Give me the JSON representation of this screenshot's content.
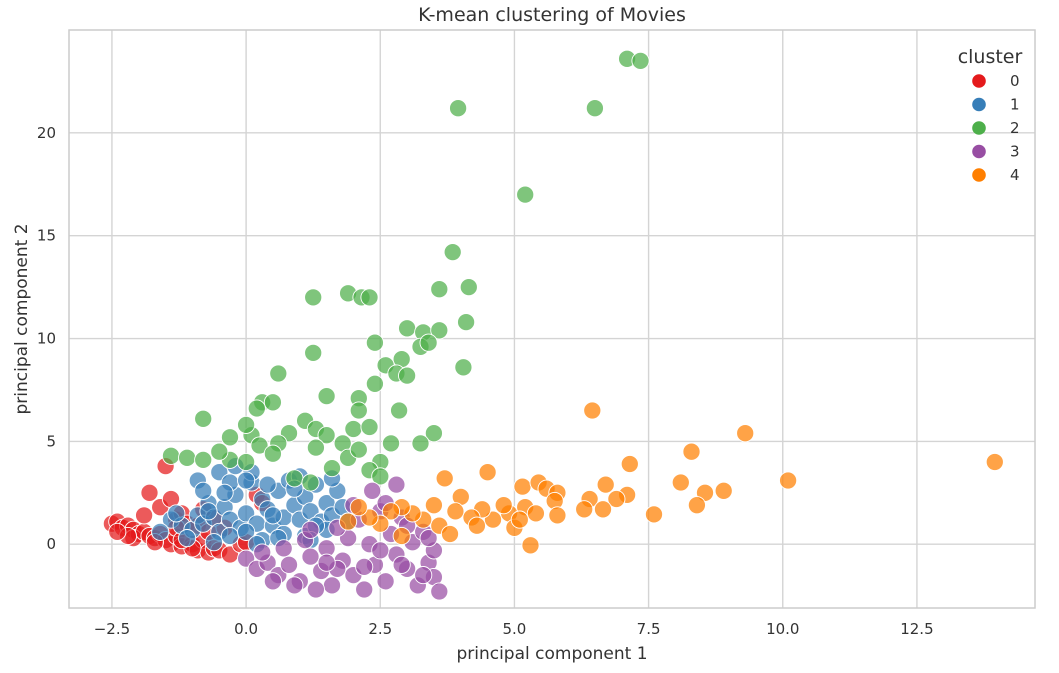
{
  "chart_data": {
    "type": "scatter",
    "title": "K-mean clustering of Movies",
    "xlabel": "principal component 1",
    "ylabel": "principal component 2",
    "xlim": [
      -3.3,
      14.7
    ],
    "ylim": [
      -3.1,
      25
    ],
    "x_ticks": [
      -2.5,
      0.0,
      2.5,
      5.0,
      7.5,
      10.0,
      12.5
    ],
    "x_tick_labels": [
      "−2.5",
      "0.0",
      "2.5",
      "5.0",
      "7.5",
      "10.0",
      "12.5"
    ],
    "y_ticks": [
      0,
      5,
      10,
      15,
      20
    ],
    "y_tick_labels": [
      "0",
      "5",
      "10",
      "15",
      "20"
    ],
    "grid": true,
    "legend": {
      "title": "cluster",
      "position": "top-right"
    },
    "series": [
      {
        "name": "0",
        "color": "#e41a1c",
        "points": [
          [
            -2.5,
            1.0
          ],
          [
            -2.4,
            1.1
          ],
          [
            -2.3,
            0.8
          ],
          [
            -2.2,
            0.9
          ],
          [
            -2.1,
            0.7
          ],
          [
            -2.0,
            0.5
          ],
          [
            -2.1,
            0.3
          ],
          [
            -1.9,
            0.6
          ],
          [
            -1.8,
            0.4
          ],
          [
            -1.7,
            0.3
          ],
          [
            -1.6,
            0.5
          ],
          [
            -1.5,
            0.2
          ],
          [
            -1.4,
            0.0
          ],
          [
            -1.3,
            0.4
          ],
          [
            -1.2,
            -0.1
          ],
          [
            -1.0,
            0.0
          ],
          [
            -0.9,
            -0.3
          ],
          [
            -0.8,
            0.2
          ],
          [
            -0.7,
            -0.4
          ],
          [
            -0.6,
            -0.2
          ],
          [
            -0.5,
            -0.3
          ],
          [
            -1.8,
            2.5
          ],
          [
            -1.6,
            1.8
          ],
          [
            -1.4,
            2.2
          ],
          [
            -1.3,
            1.2
          ],
          [
            -1.2,
            1.5
          ],
          [
            -1.1,
            1.0
          ],
          [
            -0.9,
            0.9
          ],
          [
            -0.7,
            0.6
          ],
          [
            -1.5,
            3.8
          ],
          [
            -1.3,
            0.8
          ],
          [
            -1.9,
            1.4
          ],
          [
            -2.2,
            0.4
          ],
          [
            -1.7,
            0.1
          ],
          [
            -1.0,
            -0.2
          ],
          [
            -0.3,
            -0.5
          ],
          [
            -0.1,
            0.0
          ],
          [
            0.0,
            0.1
          ],
          [
            -0.4,
            0.8
          ],
          [
            -0.6,
            1.3
          ],
          [
            -1.2,
            0.2
          ],
          [
            -0.8,
            1.7
          ],
          [
            0.2,
            2.4
          ],
          [
            0.3,
            2.0
          ],
          [
            -2.4,
            0.6
          ]
        ]
      },
      {
        "name": "1",
        "color": "#377eb8",
        "points": [
          [
            -1.4,
            1.2
          ],
          [
            -1.2,
            0.9
          ],
          [
            -1.0,
            0.7
          ],
          [
            -0.9,
            1.4
          ],
          [
            -0.8,
            1.0
          ],
          [
            -0.7,
            2.0
          ],
          [
            -0.6,
            1.3
          ],
          [
            -0.5,
            0.6
          ],
          [
            -0.4,
            1.8
          ],
          [
            -0.3,
            1.2
          ],
          [
            -0.2,
            2.4
          ],
          [
            -0.1,
            0.8
          ],
          [
            0.0,
            1.5
          ],
          [
            0.1,
            3.0
          ],
          [
            0.2,
            1.0
          ],
          [
            0.3,
            2.2
          ],
          [
            0.4,
            1.7
          ],
          [
            0.5,
            0.9
          ],
          [
            0.6,
            2.6
          ],
          [
            0.7,
            1.3
          ],
          [
            0.8,
            3.1
          ],
          [
            0.9,
            1.9
          ],
          [
            1.0,
            1.2
          ],
          [
            1.1,
            2.3
          ],
          [
            1.2,
            1.6
          ],
          [
            1.3,
            2.9
          ],
          [
            1.4,
            1.1
          ],
          [
            1.5,
            2.0
          ],
          [
            1.6,
            1.4
          ],
          [
            1.7,
            2.6
          ],
          [
            -0.9,
            3.1
          ],
          [
            -0.5,
            3.5
          ],
          [
            -0.2,
            3.8
          ],
          [
            0.1,
            3.5
          ],
          [
            0.4,
            2.9
          ],
          [
            1.0,
            3.3
          ],
          [
            1.6,
            3.2
          ],
          [
            1.8,
            1.8
          ],
          [
            -1.1,
            0.3
          ],
          [
            -0.6,
            0.1
          ],
          [
            -0.3,
            0.4
          ],
          [
            0.0,
            0.6
          ],
          [
            0.3,
            0.2
          ],
          [
            0.7,
            0.5
          ],
          [
            1.1,
            0.4
          ],
          [
            1.5,
            0.7
          ],
          [
            -0.8,
            2.6
          ],
          [
            -0.3,
            3.0
          ],
          [
            0.2,
            0.0
          ],
          [
            0.6,
            0.3
          ],
          [
            1.3,
            0.9
          ],
          [
            1.9,
            1.1
          ],
          [
            -1.6,
            0.6
          ],
          [
            -0.7,
            1.6
          ],
          [
            0.9,
            2.7
          ],
          [
            1.2,
            0.2
          ],
          [
            -0.4,
            2.5
          ],
          [
            0.5,
            1.4
          ],
          [
            -1.3,
            1.5
          ],
          [
            0.0,
            3.1
          ]
        ]
      },
      {
        "name": "2",
        "color": "#4daf4a",
        "points": [
          [
            7.1,
            23.6
          ],
          [
            7.35,
            23.5
          ],
          [
            3.95,
            21.2
          ],
          [
            6.5,
            21.2
          ],
          [
            5.2,
            17.0
          ],
          [
            3.85,
            14.2
          ],
          [
            3.6,
            12.4
          ],
          [
            4.15,
            12.5
          ],
          [
            1.25,
            12.0
          ],
          [
            1.9,
            12.2
          ],
          [
            2.15,
            12.0
          ],
          [
            2.3,
            12.0
          ],
          [
            3.0,
            10.5
          ],
          [
            3.3,
            10.3
          ],
          [
            4.1,
            10.8
          ],
          [
            3.6,
            10.4
          ],
          [
            2.4,
            9.8
          ],
          [
            3.25,
            9.6
          ],
          [
            3.4,
            9.8
          ],
          [
            2.9,
            9.0
          ],
          [
            1.25,
            9.3
          ],
          [
            2.6,
            8.7
          ],
          [
            2.8,
            8.3
          ],
          [
            3.0,
            8.2
          ],
          [
            4.05,
            8.6
          ],
          [
            0.6,
            8.3
          ],
          [
            2.4,
            7.8
          ],
          [
            1.5,
            7.2
          ],
          [
            2.1,
            7.1
          ],
          [
            2.85,
            6.5
          ],
          [
            0.3,
            6.9
          ],
          [
            0.5,
            6.9
          ],
          [
            0.2,
            6.6
          ],
          [
            -0.8,
            6.1
          ],
          [
            2.1,
            6.5
          ],
          [
            3.5,
            5.4
          ],
          [
            3.25,
            4.9
          ],
          [
            1.1,
            6.0
          ],
          [
            1.3,
            5.6
          ],
          [
            1.5,
            5.3
          ],
          [
            2.0,
            5.6
          ],
          [
            2.3,
            5.7
          ],
          [
            0.1,
            5.3
          ],
          [
            -0.3,
            5.2
          ],
          [
            0.8,
            5.4
          ],
          [
            0.6,
            4.9
          ],
          [
            1.8,
            4.9
          ],
          [
            2.7,
            4.9
          ],
          [
            -1.4,
            4.3
          ],
          [
            -1.1,
            4.2
          ],
          [
            -0.8,
            4.1
          ],
          [
            -0.3,
            4.1
          ],
          [
            0.0,
            4.0
          ],
          [
            0.25,
            4.8
          ],
          [
            1.3,
            4.7
          ],
          [
            1.9,
            4.2
          ],
          [
            2.5,
            4.0
          ],
          [
            1.6,
            3.7
          ],
          [
            2.3,
            3.6
          ],
          [
            2.5,
            3.3
          ],
          [
            0.9,
            3.2
          ],
          [
            1.2,
            3.0
          ],
          [
            0.5,
            4.4
          ],
          [
            2.1,
            4.6
          ],
          [
            -0.5,
            4.5
          ],
          [
            0.0,
            5.8
          ]
        ]
      },
      {
        "name": "3",
        "color": "#984ea3",
        "points": [
          [
            0.0,
            -0.7
          ],
          [
            0.2,
            -1.2
          ],
          [
            0.4,
            -0.9
          ],
          [
            0.6,
            -1.5
          ],
          [
            0.8,
            -1.0
          ],
          [
            1.0,
            -1.8
          ],
          [
            1.2,
            -0.6
          ],
          [
            1.4,
            -1.3
          ],
          [
            1.6,
            -2.0
          ],
          [
            1.8,
            -0.8
          ],
          [
            2.0,
            -1.5
          ],
          [
            2.2,
            -2.2
          ],
          [
            2.4,
            -1.0
          ],
          [
            2.6,
            -1.8
          ],
          [
            2.8,
            -0.5
          ],
          [
            3.0,
            -1.2
          ],
          [
            3.2,
            -2.0
          ],
          [
            3.4,
            -0.9
          ],
          [
            3.5,
            -1.6
          ],
          [
            3.6,
            -2.3
          ],
          [
            1.1,
            0.2
          ],
          [
            1.5,
            -0.2
          ],
          [
            1.9,
            0.3
          ],
          [
            2.3,
            0.0
          ],
          [
            2.7,
            0.5
          ],
          [
            3.1,
            0.1
          ],
          [
            3.3,
            0.6
          ],
          [
            1.7,
            0.8
          ],
          [
            2.1,
            1.2
          ],
          [
            2.5,
            1.6
          ],
          [
            2.9,
            1.3
          ],
          [
            2.35,
            2.6
          ],
          [
            2.8,
            2.9
          ],
          [
            1.3,
            -2.2
          ],
          [
            0.5,
            -1.8
          ],
          [
            0.9,
            -2.0
          ],
          [
            1.7,
            -1.2
          ],
          [
            2.5,
            -0.3
          ],
          [
            3.0,
            0.9
          ],
          [
            3.5,
            -0.3
          ],
          [
            0.3,
            -0.4
          ],
          [
            0.7,
            -0.2
          ],
          [
            1.5,
            -0.9
          ],
          [
            2.2,
            -1.1
          ],
          [
            2.9,
            -1.0
          ],
          [
            3.3,
            -1.5
          ],
          [
            1.2,
            0.7
          ],
          [
            2.0,
            1.9
          ],
          [
            2.6,
            2.0
          ],
          [
            3.4,
            0.3
          ]
        ]
      },
      {
        "name": "4",
        "color": "#ff7f00",
        "points": [
          [
            13.95,
            4.0
          ],
          [
            10.1,
            3.1
          ],
          [
            9.3,
            5.4
          ],
          [
            8.9,
            2.6
          ],
          [
            8.55,
            2.5
          ],
          [
            8.3,
            4.5
          ],
          [
            8.4,
            1.9
          ],
          [
            8.1,
            3.0
          ],
          [
            7.6,
            1.45
          ],
          [
            7.15,
            3.9
          ],
          [
            7.1,
            2.4
          ],
          [
            6.9,
            2.2
          ],
          [
            6.45,
            6.5
          ],
          [
            6.7,
            2.9
          ],
          [
            6.4,
            2.2
          ],
          [
            6.3,
            1.7
          ],
          [
            6.65,
            1.7
          ],
          [
            5.3,
            -0.05
          ],
          [
            5.15,
            2.8
          ],
          [
            5.45,
            3.0
          ],
          [
            5.6,
            2.7
          ],
          [
            5.8,
            2.5
          ],
          [
            5.75,
            2.1
          ],
          [
            5.8,
            1.4
          ],
          [
            5.2,
            1.8
          ],
          [
            5.4,
            1.5
          ],
          [
            4.9,
            1.5
          ],
          [
            4.8,
            1.9
          ],
          [
            4.6,
            1.2
          ],
          [
            4.5,
            3.5
          ],
          [
            4.4,
            1.7
          ],
          [
            4.2,
            1.3
          ],
          [
            4.0,
            2.3
          ],
          [
            3.9,
            1.6
          ],
          [
            3.7,
            3.2
          ],
          [
            3.6,
            0.9
          ],
          [
            3.5,
            1.9
          ],
          [
            3.3,
            1.2
          ],
          [
            3.1,
            1.5
          ],
          [
            2.9,
            0.4
          ],
          [
            2.9,
            1.8
          ],
          [
            2.7,
            1.6
          ],
          [
            2.5,
            1.0
          ],
          [
            2.3,
            1.3
          ],
          [
            2.1,
            1.8
          ],
          [
            1.9,
            1.1
          ],
          [
            3.8,
            0.5
          ],
          [
            4.3,
            0.9
          ],
          [
            5.0,
            0.8
          ],
          [
            5.1,
            1.2
          ]
        ]
      }
    ]
  }
}
